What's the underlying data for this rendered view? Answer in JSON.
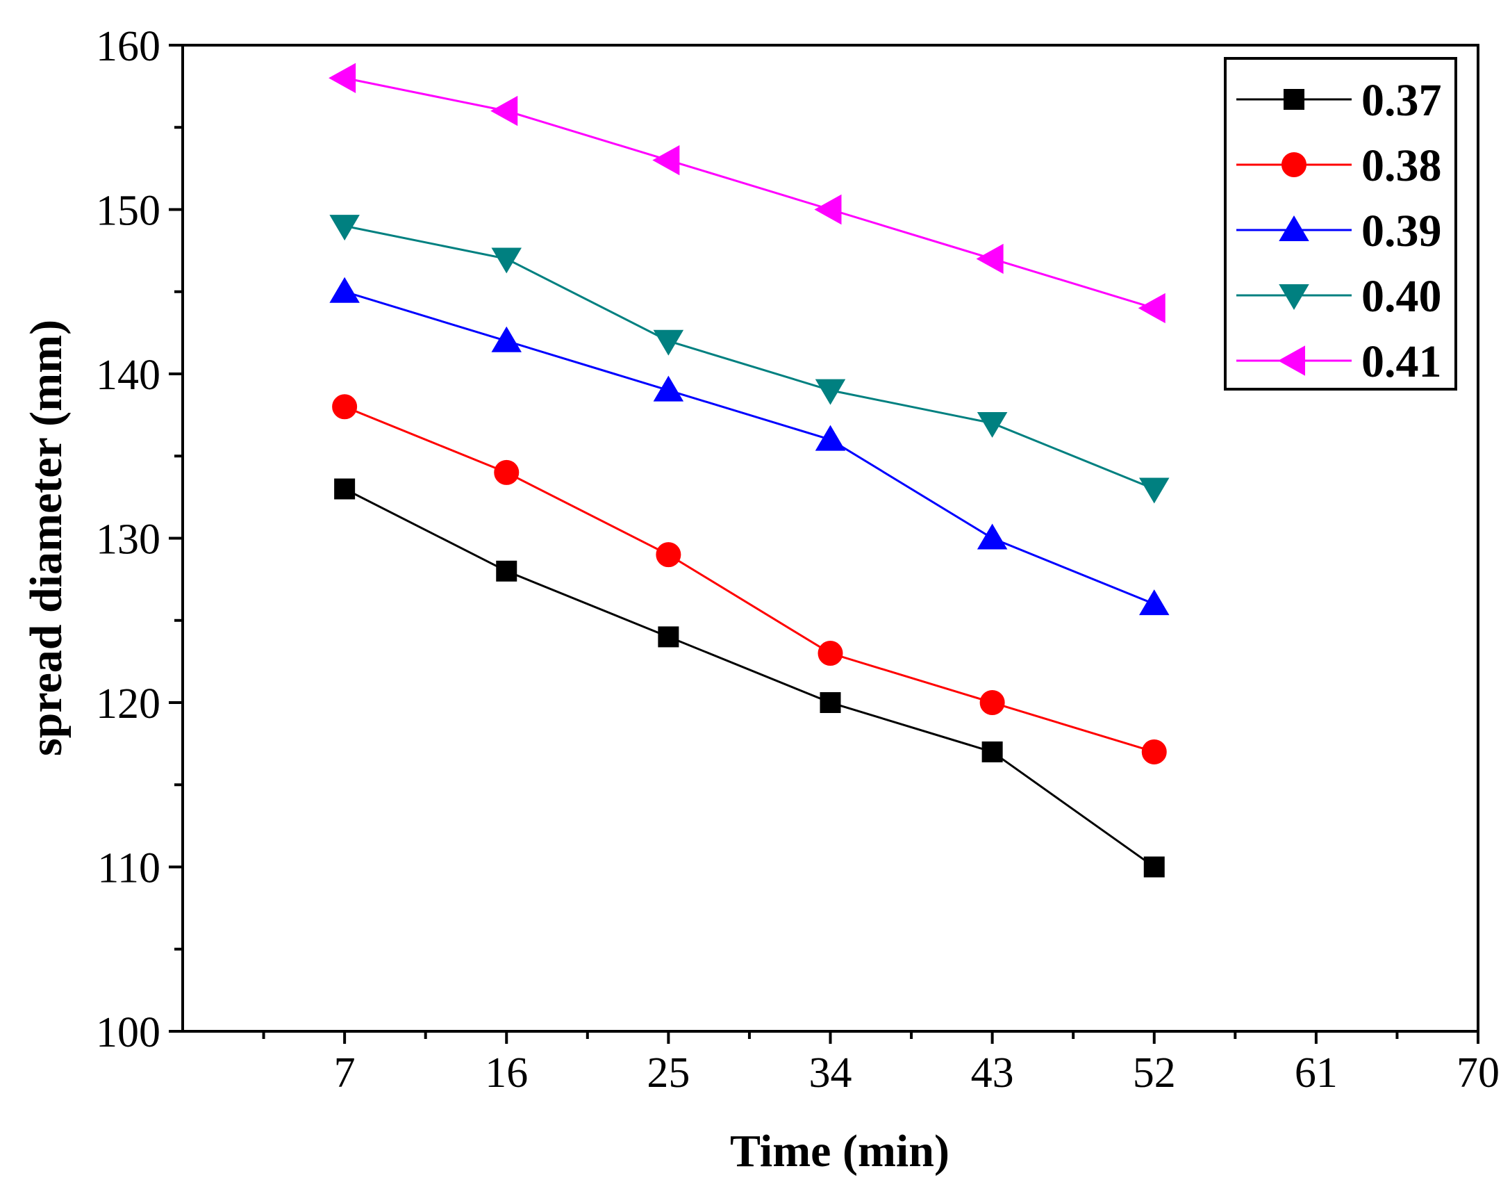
{
  "chart_data": {
    "type": "line",
    "title": "",
    "xlabel": "Time (min)",
    "ylabel": "spread diameter (mm)",
    "xlim": [
      -2,
      70
    ],
    "ylim": [
      100,
      160
    ],
    "xticks": [
      7,
      16,
      25,
      34,
      43,
      52,
      61,
      70
    ],
    "yticks": [
      100,
      110,
      120,
      130,
      140,
      150,
      160
    ],
    "x": [
      7,
      16,
      25,
      34,
      43,
      52
    ],
    "grid": false,
    "legend_position": "top-right",
    "series": [
      {
        "name": "0.37",
        "color": "#000000",
        "marker": "square",
        "values": [
          133,
          128,
          124,
          120,
          117,
          110
        ]
      },
      {
        "name": "0.38",
        "color": "#ff0000",
        "marker": "circle",
        "values": [
          138,
          134,
          129,
          123,
          120,
          117
        ]
      },
      {
        "name": "0.39",
        "color": "#0000ff",
        "marker": "triangle-up",
        "values": [
          145,
          142,
          139,
          136,
          130,
          126
        ]
      },
      {
        "name": "0.40",
        "color": "#008080",
        "marker": "triangle-down",
        "values": [
          149,
          147,
          142,
          139,
          137,
          133
        ]
      },
      {
        "name": "0.41",
        "color": "#ff00ff",
        "marker": "triangle-left",
        "values": [
          158,
          156,
          153,
          150,
          147,
          144
        ]
      }
    ]
  }
}
